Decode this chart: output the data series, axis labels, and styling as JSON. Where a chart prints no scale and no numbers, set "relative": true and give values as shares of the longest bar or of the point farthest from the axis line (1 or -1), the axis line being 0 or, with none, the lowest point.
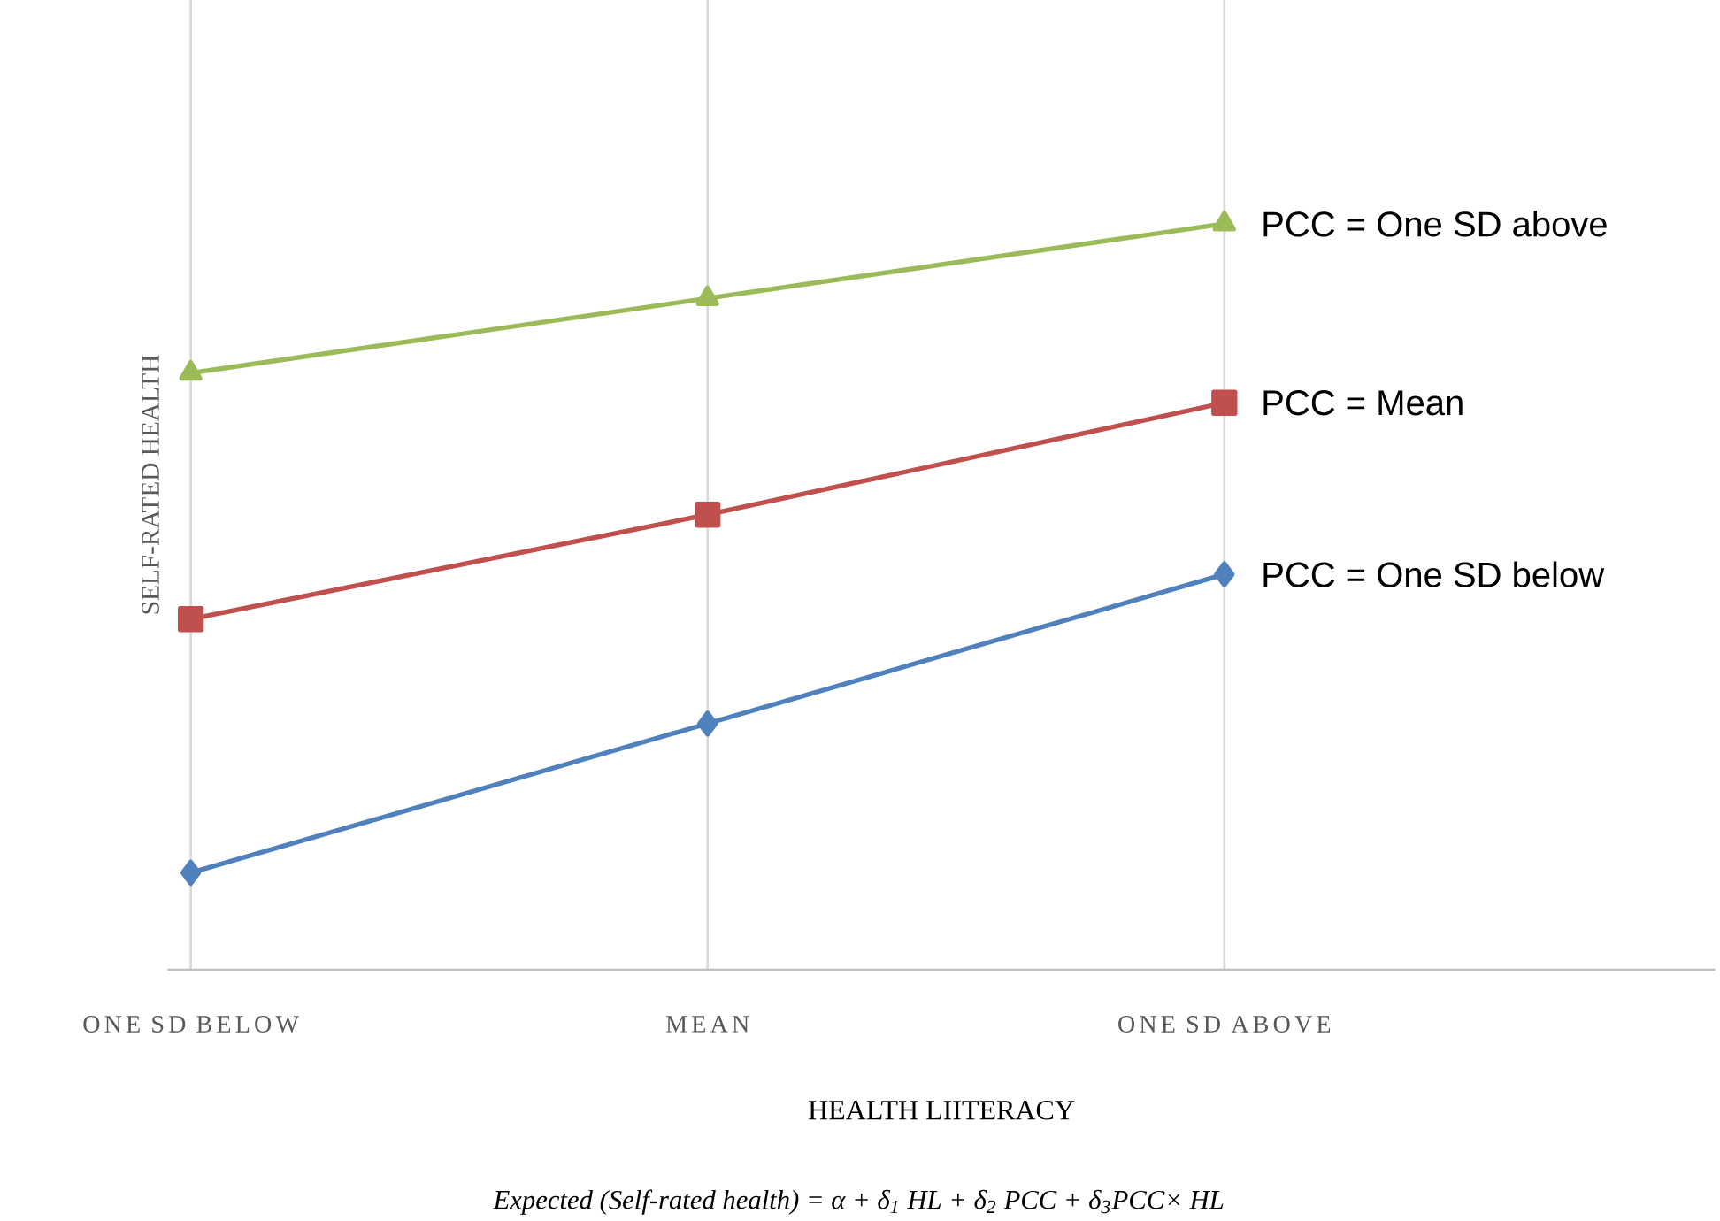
{
  "chart_data": {
    "type": "line",
    "relative": true,
    "xlabel": "HEALTH LIITERACY",
    "ylabel": "SELF-RATED HEALTH",
    "categories": [
      "ONE SD BELOW",
      "MEAN",
      "ONE SD ABOVE"
    ],
    "series": [
      {
        "name": "PCC = One SD below",
        "color": "#4f81bd",
        "marker": "diamond",
        "values": [
          0.13,
          0.33,
          0.53
        ]
      },
      {
        "name": "PCC = Mean",
        "color": "#c0504d",
        "marker": "square",
        "values": [
          0.47,
          0.61,
          0.76
        ]
      },
      {
        "name": "PCC = One SD above",
        "color": "#9bbb59",
        "marker": "triangle",
        "values": [
          0.8,
          0.9,
          1.0
        ]
      }
    ],
    "grid": "x",
    "line_style": "solid",
    "annotations": [
      "Expected (Self-rated health) = α + δ$_{1}$ HL + δ$_{2}$ PCC + δ$_{3}$PCC× HL"
    ]
  }
}
